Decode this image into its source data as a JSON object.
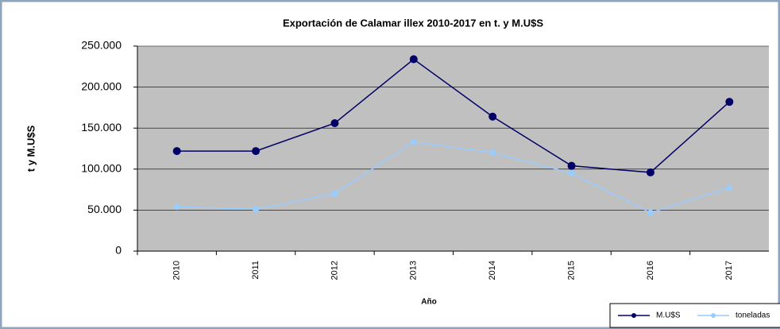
{
  "chart_data": {
    "type": "line",
    "title": "Exportación de Calamar illex 2010-2017 en t. y M.U$S",
    "x_label": "Año",
    "y_label": "t y M.U$S",
    "categories": [
      "2010",
      "2011",
      "2012",
      "2013",
      "2014",
      "2015",
      "2016",
      "2017"
    ],
    "series": [
      {
        "name": "M.U$S",
        "color": "#000066",
        "values": [
          122000,
          122000,
          156000,
          234000,
          164000,
          104000,
          96000,
          182000
        ]
      },
      {
        "name": "toneladas",
        "color": "#99ccff",
        "values": [
          54000,
          51000,
          70000,
          133000,
          120000,
          95000,
          47000,
          77000
        ]
      }
    ],
    "ylim": [
      0,
      250000
    ],
    "yticks": [
      0,
      {
        "value": 50000,
        "label": "50.000"
      },
      {
        "value": 100000,
        "label": "100.000"
      },
      {
        "value": 150000,
        "label": "150.000"
      },
      {
        "value": 200000,
        "label": "200.000"
      },
      {
        "value": 250000,
        "label": "250.000"
      }
    ],
    "grid": true,
    "legend": "bottom-right"
  }
}
